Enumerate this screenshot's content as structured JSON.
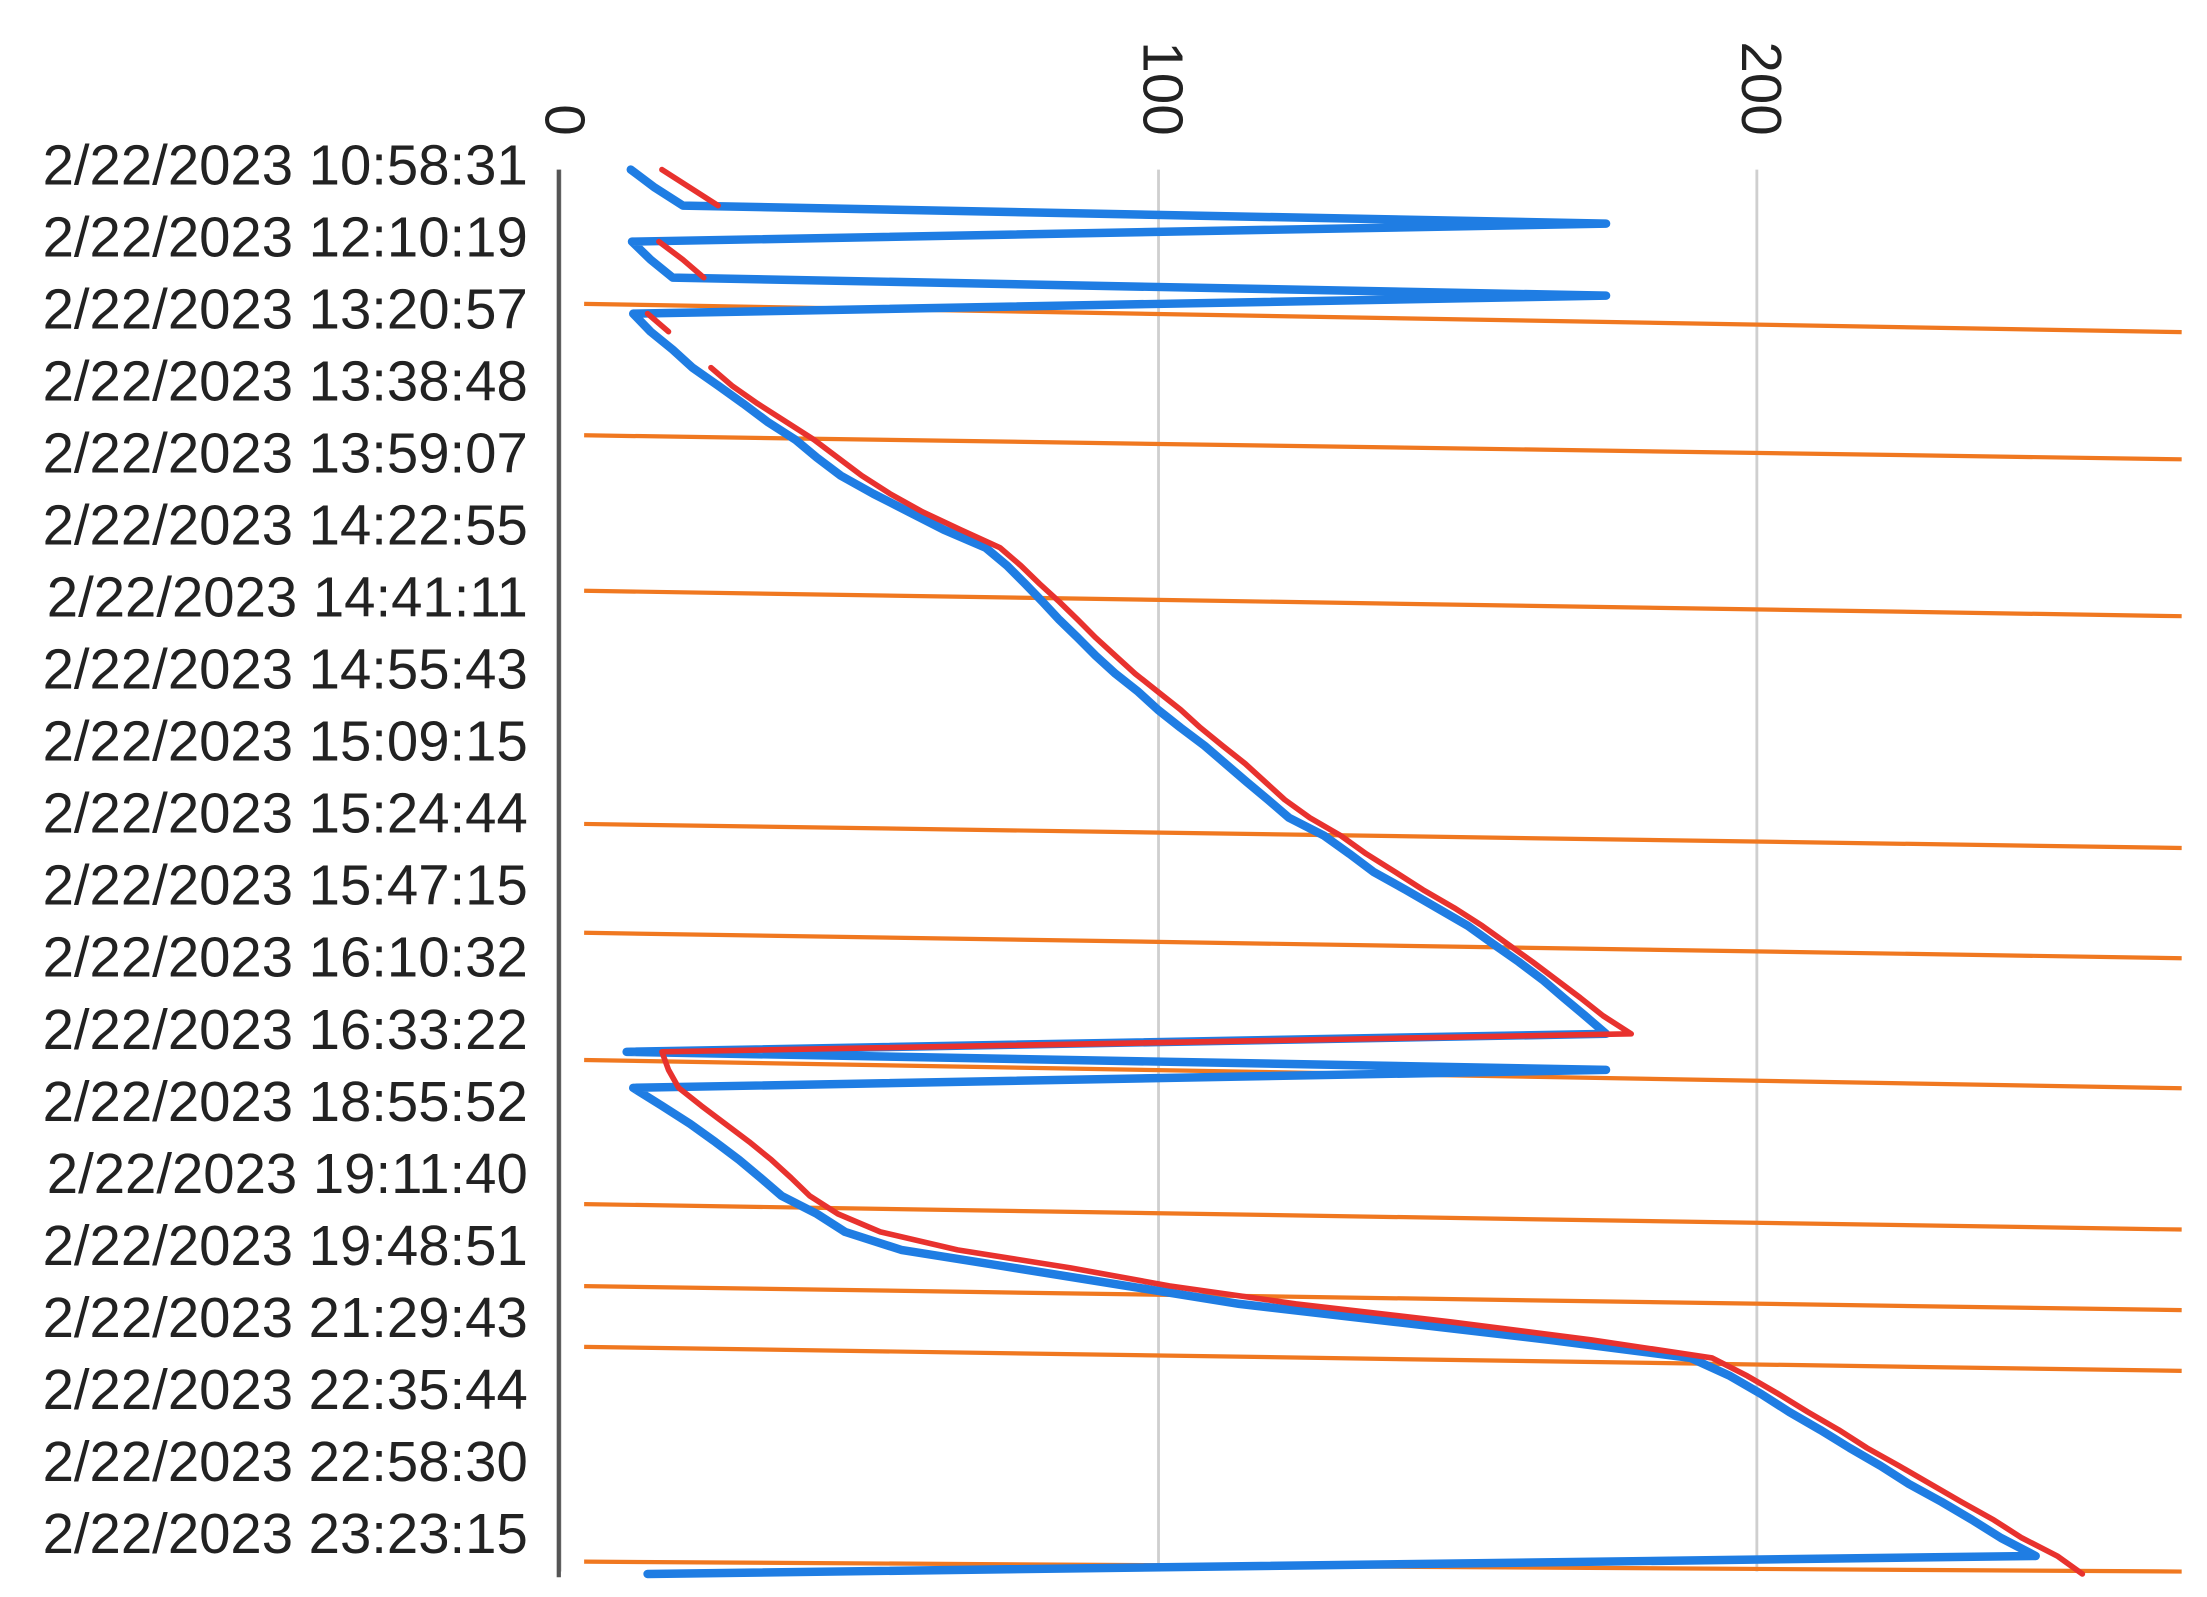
{
  "chart_data": {
    "type": "line",
    "orientation": "horizontal",
    "categories": [
      "2/22/2023 10:58:31",
      null,
      null,
      null,
      "2/22/2023 12:10:19",
      null,
      null,
      null,
      "2/22/2023 13:20:57",
      null,
      null,
      null,
      "2/22/2023 13:38:48",
      null,
      null,
      null,
      "2/22/2023 13:59:07",
      null,
      null,
      null,
      "2/22/2023 14:22:55",
      null,
      null,
      null,
      "2/22/2023 14:41:11",
      null,
      null,
      null,
      "2/22/2023 14:55:43",
      null,
      null,
      null,
      "2/22/2023 15:09:15",
      null,
      null,
      null,
      "2/22/2023 15:24:44",
      null,
      null,
      null,
      "2/22/2023 15:47:15",
      null,
      null,
      null,
      "2/22/2023 16:10:32",
      null,
      null,
      null,
      "2/22/2023 16:33:22",
      null,
      null,
      null,
      "2/22/2023 18:55:52",
      null,
      null,
      null,
      "2/22/2023 19:11:40",
      null,
      null,
      null,
      "2/22/2023 19:48:51",
      null,
      null,
      null,
      "2/22/2023 21:29:43",
      null,
      null,
      null,
      "2/22/2023 22:35:44",
      null,
      null,
      null,
      "2/22/2023 22:58:30",
      null,
      null,
      null,
      "2/22/2023 23:23:15",
      null,
      null
    ],
    "series": [
      {
        "color": "#1f7de3",
        "values": [
          11.8,
          15.8,
          20.5,
          174.8,
          12,
          15.1,
          18.8,
          174.8,
          12.2,
          15.1,
          18.8,
          22.1,
          26.4,
          30.6,
          34.6,
          39.3,
          42.9,
          46.9,
          52.3,
          58.2,
          64.1,
          71.1,
          74.7,
          77.7,
          80.6,
          83.4,
          86.5,
          89.5,
          92.8,
          96.6,
          99.9,
          103.7,
          107.7,
          111.2,
          114.7,
          118.3,
          121.8,
          127.7,
          131.9,
          135.9,
          141.3,
          146.5,
          151.7,
          155.9,
          160.2,
          164.2,
          167.7,
          171.3,
          174.8,
          11.1,
          174.8,
          12.2,
          17,
          21.7,
          25.9,
          29.9,
          33.5,
          37,
          42.9,
          47.6,
          57,
          75.9,
          94.7,
          113.5,
          139.5,
          165.4,
          188.9,
          195.5,
          200.7,
          205.4,
          210.6,
          215.5,
          220.7,
          225.4,
          230.9,
          236,
          240.8,
          246.6,
          14.6
        ]
      },
      {
        "color": "#e8322e",
        "values": [
          17,
          21.7,
          26.4,
          null,
          16.5,
          20.5,
          24,
          null,
          14.6,
          18.1,
          null,
          25.2,
          28.7,
          33,
          37.7,
          42.4,
          46.4,
          50.4,
          55.1,
          60.5,
          66.9,
          73.5,
          77,
          80.1,
          83.4,
          86.5,
          89.5,
          92.8,
          96.1,
          99.9,
          103.7,
          107,
          110.7,
          114.5,
          117.8,
          121.1,
          125.3,
          130.5,
          134.7,
          139.5,
          144.2,
          149.4,
          154.1,
          158.3,
          162.5,
          166.5,
          170.5,
          174.3,
          179,
          17,
          18.1,
          19.8,
          23.6,
          27.6,
          31.6,
          35.3,
          38.6,
          41.7,
          46.4,
          53.5,
          66.4,
          85.3,
          101.8,
          123,
          148.9,
          172.4,
          192.5,
          198.4,
          203.6,
          208.5,
          213.7,
          218.4,
          223.8,
          229,
          234.2,
          239.6,
          244.3,
          250.2,
          254.4
        ]
      }
    ],
    "xlim": [
      0,
      271
    ],
    "xticks": [
      0,
      100,
      200
    ],
    "grid": true
  }
}
